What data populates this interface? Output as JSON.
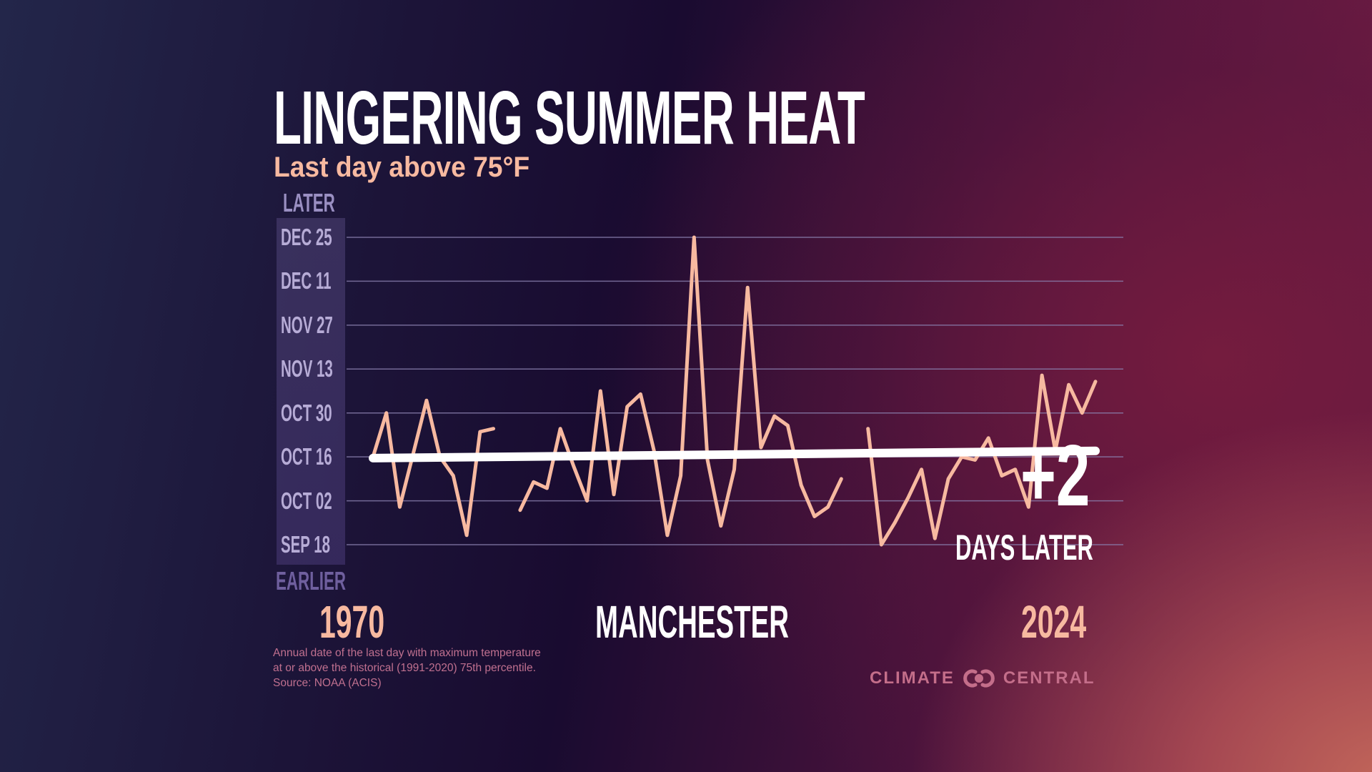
{
  "header": {
    "title": "LINGERING SUMMER HEAT",
    "subtitle": "Last day above 75°F"
  },
  "axis": {
    "later_label": "LATER",
    "earlier_label": "EARLIER",
    "start_year_label": "1970",
    "end_year_label": "2024",
    "location": "MANCHESTER"
  },
  "callout": {
    "change": "+2",
    "change_label": "DAYS LATER"
  },
  "footnote": {
    "lines": [
      "Annual date of the last day with maximum temperature",
      "at or above the historical (1991-2020) 75th percentile.",
      "Source: NOAA (ACIS)"
    ]
  },
  "brand": {
    "left_word": "CLIMATE",
    "right_word": "CENTRAL",
    "logo_icon": "climate-central-logo-icon"
  },
  "colors": {
    "line": "#f7b9a0",
    "trend": "#ffffff",
    "grid": "#8a7fae",
    "title": "#ffffff",
    "subtitle": "#f7b9a0",
    "axis_label": "#b7acd6"
  },
  "chart_data": {
    "type": "line",
    "title": "LINGERING SUMMER HEAT",
    "subtitle": "Last day above 75°F",
    "location": "MANCHESTER",
    "xlabel": "",
    "ylabel": "",
    "y_units": "days after Sep 18",
    "y_ticks": [
      {
        "label": "SEP 18",
        "value": 0
      },
      {
        "label": "OCT 02",
        "value": 14
      },
      {
        "label": "OCT 16",
        "value": 28
      },
      {
        "label": "OCT 30",
        "value": 42
      },
      {
        "label": "NOV 13",
        "value": 56
      },
      {
        "label": "NOV 27",
        "value": 70
      },
      {
        "label": "DEC 11",
        "value": 84
      },
      {
        "label": "DEC 25",
        "value": 98
      }
    ],
    "ylim": [
      0,
      98
    ],
    "xlim": [
      1970,
      2024
    ],
    "grid": true,
    "series": [
      {
        "name": "Last day above 75°F",
        "x": [
          1970,
          1971,
          1972,
          1973,
          1974,
          1975,
          1976,
          1977,
          1978,
          1979,
          1980,
          1981,
          1982,
          1983,
          1984,
          1985,
          1986,
          1987,
          1988,
          1989,
          1990,
          1991,
          1992,
          1993,
          1994,
          1995,
          1996,
          1997,
          1998,
          1999,
          2000,
          2001,
          2002,
          2003,
          2004,
          2005,
          2006,
          2007,
          2008,
          2009,
          2010,
          2011,
          2012,
          2013,
          2014,
          2015,
          2016,
          2017,
          2018,
          2019,
          2020,
          2021,
          2022,
          2023,
          2024
        ],
        "values": [
          28,
          42,
          12,
          29,
          46,
          28,
          22,
          3,
          36,
          37,
          null,
          11,
          20,
          18,
          37,
          25,
          14,
          49,
          16,
          44,
          48,
          30,
          3,
          22,
          98,
          27,
          6,
          24,
          82,
          31,
          41,
          38,
          19,
          9,
          12,
          21,
          null,
          37,
          0,
          7,
          15,
          24,
          2,
          21,
          28,
          27,
          34,
          22,
          24,
          12,
          54,
          30,
          51,
          42,
          52
        ]
      }
    ],
    "trend": {
      "name": "Trend",
      "start_value": 27.6,
      "end_value": 29.9,
      "change_days": 2,
      "label": "+2 DAYS LATER"
    }
  }
}
